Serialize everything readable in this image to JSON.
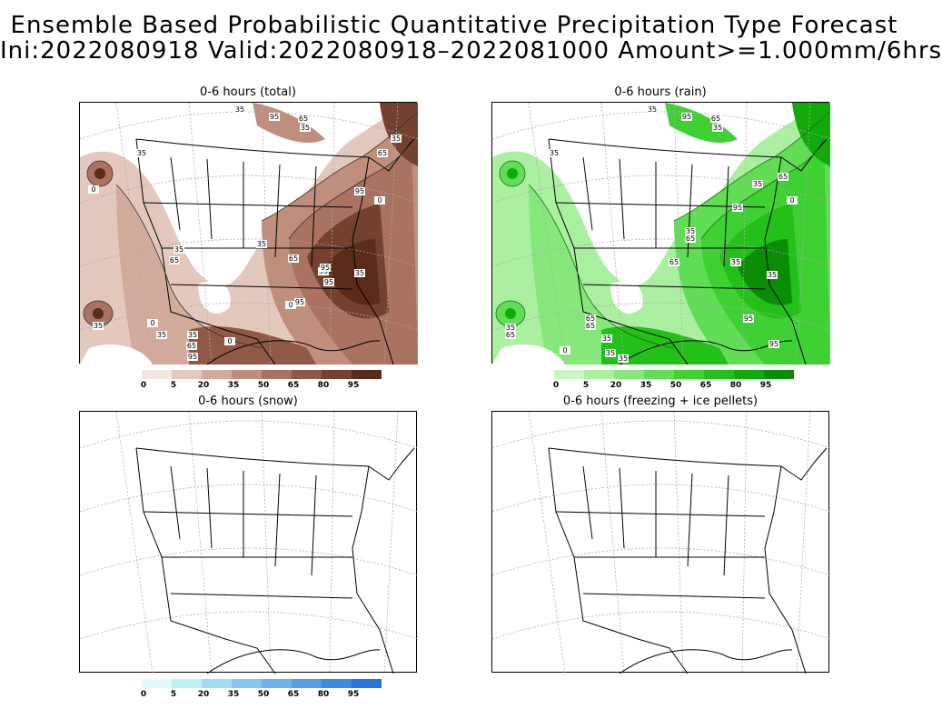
{
  "title": {
    "line1": "Ensemble Based Probabilistic Quantitative Precipitation Type Forecast",
    "line2": "Ini:2022080918 Valid:2022080918–2022081000 Amount>=1.000mm/6hrs"
  },
  "panels": [
    {
      "id": "total",
      "title": "0-6 hours (total)"
    },
    {
      "id": "rain",
      "title": "0-6 hours (rain)"
    },
    {
      "id": "snow",
      "title": "0-6 hours (snow)"
    },
    {
      "id": "ice",
      "title": "0-6 hours (freezing + ice pellets)"
    }
  ],
  "colorbars": {
    "labels": [
      "0",
      "5",
      "20",
      "35",
      "50",
      "65",
      "80",
      "95"
    ],
    "brown": [
      "#f2e6e1",
      "#e3c9bd",
      "#d2ab9c",
      "#bf8e7d",
      "#a97261",
      "#8f5847",
      "#74402f",
      "#5a2a1b"
    ],
    "green": [
      "#c8f5c2",
      "#aaf0a0",
      "#86e87b",
      "#61de56",
      "#3fd034",
      "#22c018",
      "#12a90a",
      "#0a8c05"
    ],
    "blue": [
      "#e0fbfc",
      "#bff0f6",
      "#a3dcf2",
      "#88c8ee",
      "#6eb3ea",
      "#559ee6",
      "#3d88e2",
      "#2573de"
    ]
  },
  "contour_labels": {
    "total": [
      "35",
      "95",
      "65",
      "35",
      "35",
      "65",
      "0",
      "35",
      "95",
      "0",
      "35",
      "35",
      "65",
      "65",
      "35",
      "0",
      "95",
      "35",
      "95",
      "95",
      "35",
      "35",
      "65",
      "95",
      "0",
      "0",
      "35"
    ],
    "rain": [
      "35",
      "95",
      "65",
      "35",
      "35",
      "65",
      "35",
      "95",
      "0",
      "35",
      "65",
      "35",
      "65",
      "65",
      "35",
      "95",
      "95",
      "35",
      "65",
      "35",
      "35",
      "65",
      "35",
      "0"
    ]
  }
}
